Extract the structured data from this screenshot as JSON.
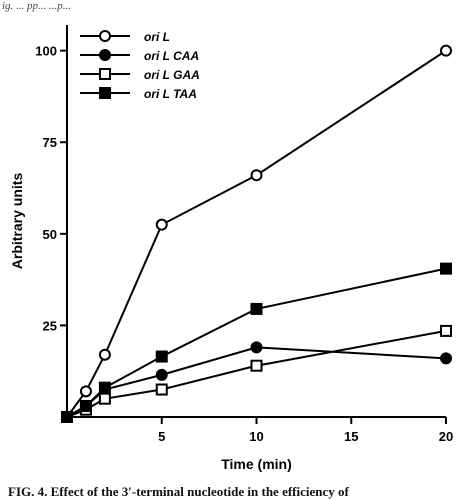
{
  "page": {
    "header": "ig. ... pp... ...p...",
    "caption": "FIG. 4. Effect of the 3′-terminal nucleotide in the efficiency of"
  },
  "chart_data": {
    "type": "line",
    "title": "",
    "xlabel": "Time (min)",
    "ylabel": "Arbitrary units",
    "xlim": [
      0,
      20
    ],
    "ylim": [
      0,
      107
    ],
    "xticks": [
      5,
      10,
      15,
      20
    ],
    "yticks": [
      25,
      50,
      75,
      100
    ],
    "grid": false,
    "legend_position": "top-left",
    "colors": {
      "line": "#000000",
      "marker_fill": "#000000",
      "marker_open": "#ffffff"
    },
    "series": [
      {
        "name": "ori L",
        "marker": "open-circle",
        "x": [
          0,
          1,
          2,
          5,
          10,
          20
        ],
        "y": [
          0,
          7,
          17,
          52.5,
          66,
          100
        ]
      },
      {
        "name": "ori L  CAA",
        "marker": "filled-circle",
        "x": [
          0,
          1,
          2,
          5,
          10,
          20
        ],
        "y": [
          0,
          3,
          7.5,
          11.5,
          19,
          16
        ]
      },
      {
        "name": "ori L  GAA",
        "marker": "open-square",
        "x": [
          0,
          1,
          2,
          5,
          10,
          20
        ],
        "y": [
          0,
          2,
          5,
          7.5,
          14,
          23.5
        ]
      },
      {
        "name": "ori L  TAA",
        "marker": "filled-square",
        "x": [
          0,
          1,
          2,
          5,
          10,
          20
        ],
        "y": [
          0,
          3,
          8,
          16.5,
          29.5,
          40.5
        ]
      }
    ]
  }
}
